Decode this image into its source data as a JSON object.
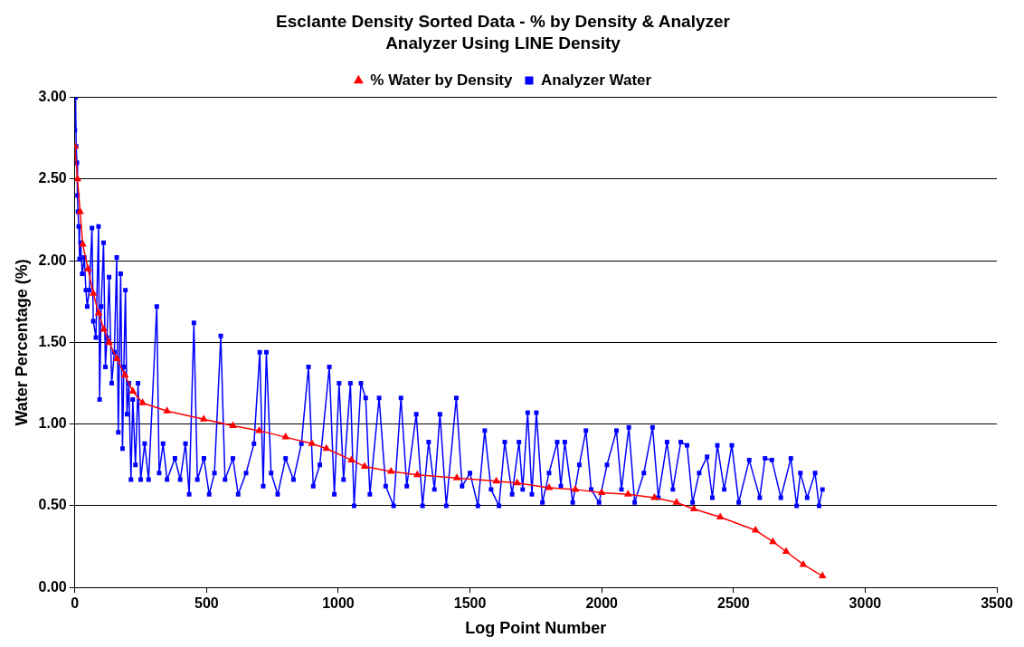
{
  "chart_data": {
    "type": "line",
    "title": "Esclante Density Sorted Data - % by Density & Analyzer",
    "subtitle": "Analyzer Using LINE Density",
    "xlabel": "Log Point Number",
    "ylabel": "Water Percentage (%)",
    "xlim": [
      0,
      3500
    ],
    "xticks": [
      0,
      500,
      1000,
      1500,
      2000,
      2500,
      3000,
      3500
    ],
    "ylim": [
      0,
      3
    ],
    "yticks": [
      {
        "value": 0,
        "label": "0.00"
      },
      {
        "value": 0.5,
        "label": "0.50"
      },
      {
        "value": 1,
        "label": "1.00"
      },
      {
        "value": 1.5,
        "label": "1.50"
      },
      {
        "value": 2,
        "label": "2.00"
      },
      {
        "value": 2.5,
        "label": "2.50"
      },
      {
        "value": 3,
        "label": "3.00"
      }
    ],
    "grid": "y",
    "legend": "top",
    "line_style": "solid",
    "series": [
      {
        "name": "% Water by Density",
        "color": "#ff0000",
        "marker": "triangle",
        "x": [
          0,
          10,
          20,
          30,
          50,
          70,
          90,
          110,
          130,
          160,
          190,
          220,
          257,
          350,
          489,
          600,
          700,
          800,
          900,
          955,
          1050,
          1100,
          1200,
          1300,
          1450,
          1600,
          1679,
          1800,
          1900,
          2000,
          2100,
          2200,
          2284,
          2350,
          2450,
          2584,
          2650,
          2700,
          2765,
          2838
        ],
        "values": [
          2.7,
          2.5,
          2.3,
          2.1,
          1.95,
          1.8,
          1.68,
          1.58,
          1.5,
          1.4,
          1.3,
          1.2,
          1.13,
          1.08,
          1.03,
          0.99,
          0.96,
          0.92,
          0.88,
          0.85,
          0.78,
          0.74,
          0.71,
          0.69,
          0.67,
          0.65,
          0.64,
          0.61,
          0.6,
          0.58,
          0.57,
          0.55,
          0.52,
          0.48,
          0.43,
          0.35,
          0.28,
          0.22,
          0.14,
          0.07
        ]
      },
      {
        "name": "Analyzer Water",
        "color": "#0000ff",
        "marker": "square",
        "x": [
          0,
          3,
          5,
          8,
          10,
          12,
          15,
          18,
          22,
          28,
          36,
          42,
          47,
          55,
          65,
          70,
          80,
          90,
          94,
          100,
          109,
          116,
          122,
          130,
          140,
          150,
          159,
          165,
          174,
          181,
          186,
          192,
          198,
          205,
          213,
          220,
          230,
          240,
          250,
          265,
          280,
          311,
          320,
          335,
          350,
          380,
          400,
          420,
          434,
          452,
          465,
          490,
          510,
          530,
          554,
          570,
          600,
          620,
          650,
          680,
          702,
          715,
          727,
          745,
          770,
          800,
          830,
          860,
          887,
          905,
          930,
          966,
          985,
          1003,
          1020,
          1046,
          1060,
          1086,
          1104,
          1120,
          1155,
          1180,
          1210,
          1238,
          1260,
          1296,
          1320,
          1343,
          1365,
          1386,
          1410,
          1448,
          1470,
          1500,
          1530,
          1556,
          1580,
          1610,
          1632,
          1660,
          1686,
          1700,
          1719,
          1735,
          1752,
          1775,
          1800,
          1831,
          1845,
          1860,
          1890,
          1915,
          1940,
          1960,
          1990,
          2020,
          2056,
          2075,
          2103,
          2125,
          2160,
          2193,
          2215,
          2248,
          2270,
          2300,
          2324,
          2345,
          2370,
          2400,
          2420,
          2439,
          2465,
          2494,
          2520,
          2560,
          2600,
          2620,
          2646,
          2680,
          2718,
          2740,
          2754,
          2780,
          2810,
          2825,
          2838
        ],
        "values": [
          2.8,
          3.0,
          2.7,
          2.6,
          2.4,
          2.3,
          2.21,
          2.01,
          2.11,
          1.92,
          2.02,
          1.82,
          1.72,
          1.82,
          2.2,
          1.63,
          1.53,
          2.21,
          1.15,
          1.72,
          2.11,
          1.35,
          1.53,
          1.9,
          1.25,
          1.44,
          2.02,
          0.95,
          1.92,
          0.85,
          1.35,
          1.82,
          1.06,
          1.25,
          0.66,
          1.15,
          0.75,
          1.25,
          0.66,
          0.88,
          0.66,
          1.72,
          0.7,
          0.88,
          0.66,
          0.79,
          0.66,
          0.88,
          0.57,
          1.62,
          0.66,
          0.79,
          0.57,
          0.7,
          1.54,
          0.66,
          0.79,
          0.57,
          0.7,
          0.88,
          1.44,
          0.62,
          1.44,
          0.7,
          0.57,
          0.79,
          0.66,
          0.88,
          1.35,
          0.62,
          0.75,
          1.35,
          0.57,
          1.25,
          0.66,
          1.25,
          0.5,
          1.25,
          1.16,
          0.57,
          1.16,
          0.62,
          0.5,
          1.16,
          0.62,
          1.06,
          0.5,
          0.89,
          0.6,
          1.06,
          0.5,
          1.16,
          0.62,
          0.7,
          0.5,
          0.96,
          0.6,
          0.5,
          0.89,
          0.57,
          0.89,
          0.6,
          1.07,
          0.57,
          1.07,
          0.52,
          0.7,
          0.89,
          0.62,
          0.89,
          0.52,
          0.75,
          0.96,
          0.6,
          0.52,
          0.75,
          0.96,
          0.6,
          0.98,
          0.52,
          0.7,
          0.98,
          0.55,
          0.89,
          0.6,
          0.89,
          0.87,
          0.52,
          0.7,
          0.8,
          0.55,
          0.87,
          0.6,
          0.87,
          0.52,
          0.78,
          0.55,
          0.79,
          0.78,
          0.55,
          0.79,
          0.5,
          0.7,
          0.55,
          0.7,
          0.5,
          0.6
        ]
      }
    ]
  }
}
